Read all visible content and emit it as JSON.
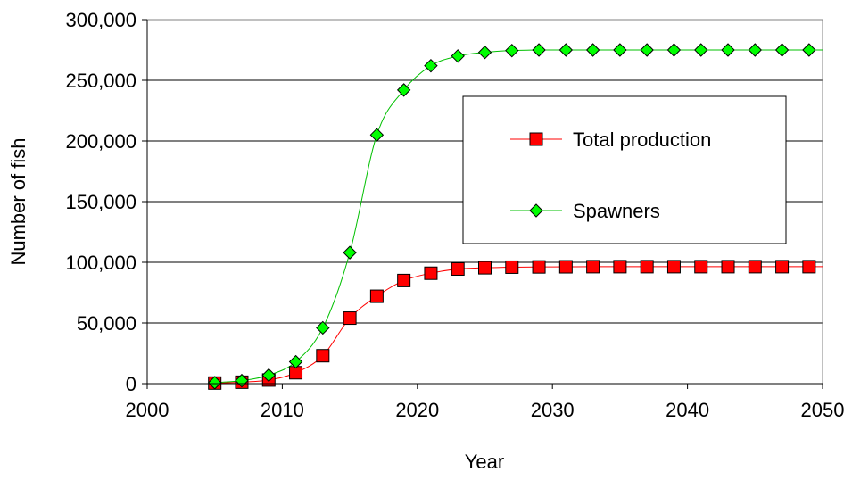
{
  "chart_data": {
    "type": "line",
    "title": "",
    "xlabel": "Year",
    "ylabel": "Number of fish",
    "xlim": [
      2000,
      2050
    ],
    "ylim": [
      0,
      300000
    ],
    "x_ticks": [
      "2000",
      "2010",
      "2020",
      "2030",
      "2040",
      "2050"
    ],
    "y_ticks": [
      "0",
      "50,000",
      "100,000",
      "150,000",
      "200,000",
      "250,000",
      "300,000"
    ],
    "grid": "horizontal",
    "legend_position": "center-right",
    "x": [
      2005,
      2007,
      2009,
      2011,
      2013,
      2015,
      2017,
      2019,
      2021,
      2023,
      2025,
      2027,
      2029,
      2031,
      2033,
      2035,
      2037,
      2039,
      2041,
      2043,
      2045,
      2047,
      2049
    ],
    "series": [
      {
        "name": "Total production",
        "color": "#ff0000",
        "marker_fill": "#ff0000",
        "marker": "square",
        "values": [
          500,
          1200,
          3000,
          9000,
          23000,
          54000,
          72000,
          85000,
          91000,
          94500,
          95500,
          96000,
          96200,
          96300,
          96400,
          96400,
          96400,
          96400,
          96400,
          96400,
          96400,
          96400,
          96400
        ]
      },
      {
        "name": "Spawners",
        "color": "#00c000",
        "marker_fill": "#00ff00",
        "marker": "diamond",
        "values": [
          800,
          2500,
          7000,
          18000,
          46000,
          108000,
          205000,
          242000,
          262000,
          270000,
          273000,
          274500,
          275000,
          275000,
          275000,
          275000,
          275000,
          275000,
          275000,
          275000,
          275000,
          275000,
          275000
        ]
      }
    ]
  }
}
